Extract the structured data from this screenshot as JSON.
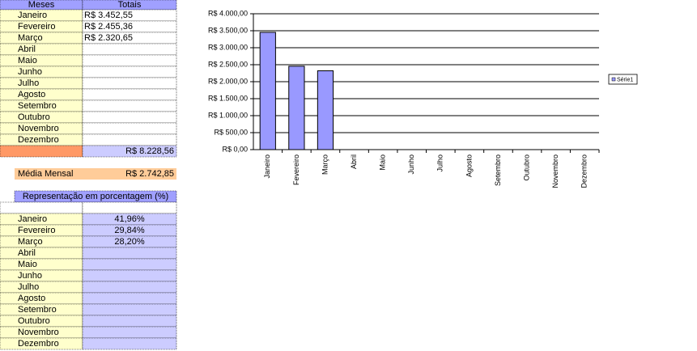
{
  "table": {
    "headers": [
      "Meses",
      "Totais"
    ],
    "months": [
      "Janeiro",
      "Fevereiro",
      "Março",
      "Abril",
      "Maio",
      "Junho",
      "Julho",
      "Agosto",
      "Setembro",
      "Outubro",
      "Novembro",
      "Dezembro"
    ],
    "totals": [
      "R$ 3.452,55",
      "R$ 2.455,36",
      "R$ 2.320,65"
    ],
    "sum": "R$ 8.228,56"
  },
  "average": {
    "label": "Média Mensal",
    "value": "R$ 2.742,85"
  },
  "percent_table": {
    "title": "Representação em porcentagem (%)",
    "months": [
      "Janeiro",
      "Fevereiro",
      "Março",
      "Abril",
      "Maio",
      "Junho",
      "Julho",
      "Agosto",
      "Setembro",
      "Outubro",
      "Novembro",
      "Dezembro"
    ],
    "percents": [
      "41,96%",
      "29,84%",
      "28,20%"
    ]
  },
  "chart_data": {
    "type": "bar",
    "categories": [
      "Janeiro",
      "Fevereiro",
      "Março",
      "Abril",
      "Maio",
      "Junho",
      "Julho",
      "Agosto",
      "Setembro",
      "Outubro",
      "Novembro",
      "Dezembro"
    ],
    "series": [
      {
        "name": "Série1",
        "color": "#9999ff",
        "values": [
          3452.55,
          2455.36,
          2320.65,
          null,
          null,
          null,
          null,
          null,
          null,
          null,
          null,
          null
        ]
      }
    ],
    "ylim": [
      0,
      4000
    ],
    "yticks": [
      {
        "value": 0,
        "label": "R$ 0,00"
      },
      {
        "value": 500,
        "label": "R$ 500,00"
      },
      {
        "value": 1000,
        "label": "R$ 1.000,00"
      },
      {
        "value": 1500,
        "label": "R$ 1.500,00"
      },
      {
        "value": 2000,
        "label": "R$ 2.000,00"
      },
      {
        "value": 2500,
        "label": "R$ 2.500,00"
      },
      {
        "value": 3000,
        "label": "R$ 3.000,00"
      },
      {
        "value": 3500,
        "label": "R$ 3.500,00"
      },
      {
        "value": 4000,
        "label": "R$ 4.000,00"
      }
    ],
    "grid": true,
    "legend": "right"
  }
}
